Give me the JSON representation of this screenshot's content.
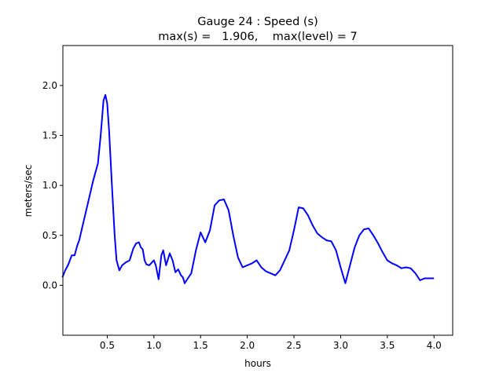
{
  "chart_data": {
    "type": "line",
    "title_line1": "Gauge 24 : Speed (s)",
    "title_line2": "max(s) =   1.906,    max(level) = 7",
    "xlabel": "hours",
    "ylabel": "meters/sec",
    "xlim": [
      0.025,
      4.2
    ],
    "ylim": [
      -0.5,
      2.4
    ],
    "xticks": [
      0.5,
      1.0,
      1.5,
      2.0,
      2.5,
      3.0,
      3.5,
      4.0
    ],
    "xtick_labels": [
      "0.5",
      "1.0",
      "1.5",
      "2.0",
      "2.5",
      "3.0",
      "3.5",
      "4.0"
    ],
    "yticks": [
      0.0,
      0.5,
      1.0,
      1.5,
      2.0
    ],
    "ytick_labels": [
      "0.0",
      "0.5",
      "1.0",
      "1.5",
      "2.0"
    ],
    "grid": false,
    "series": [
      {
        "name": "speed",
        "color": "#0000ff",
        "x": [
          0.02,
          0.05,
          0.08,
          0.1,
          0.12,
          0.15,
          0.18,
          0.2,
          0.25,
          0.3,
          0.35,
          0.4,
          0.43,
          0.46,
          0.48,
          0.5,
          0.52,
          0.55,
          0.58,
          0.6,
          0.63,
          0.66,
          0.7,
          0.74,
          0.78,
          0.81,
          0.84,
          0.86,
          0.88,
          0.9,
          0.92,
          0.95,
          1.0,
          1.02,
          1.05,
          1.08,
          1.1,
          1.13,
          1.17,
          1.2,
          1.23,
          1.26,
          1.29,
          1.31,
          1.33,
          1.35,
          1.4,
          1.45,
          1.5,
          1.55,
          1.6,
          1.65,
          1.7,
          1.75,
          1.8,
          1.85,
          1.9,
          1.95,
          2.0,
          2.05,
          2.1,
          2.15,
          2.2,
          2.25,
          2.3,
          2.35,
          2.4,
          2.45,
          2.5,
          2.55,
          2.6,
          2.65,
          2.7,
          2.75,
          2.8,
          2.85,
          2.9,
          2.95,
          3.0,
          3.05,
          3.1,
          3.15,
          3.2,
          3.25,
          3.3,
          3.35,
          3.4,
          3.45,
          3.5,
          3.55,
          3.6,
          3.65,
          3.7,
          3.75,
          3.8,
          3.85,
          3.9,
          3.95,
          4.0
        ],
        "y": [
          0.08,
          0.15,
          0.2,
          0.25,
          0.3,
          0.3,
          0.4,
          0.45,
          0.65,
          0.85,
          1.05,
          1.22,
          1.5,
          1.85,
          1.906,
          1.82,
          1.55,
          1.0,
          0.5,
          0.25,
          0.15,
          0.2,
          0.23,
          0.25,
          0.37,
          0.42,
          0.43,
          0.38,
          0.36,
          0.25,
          0.21,
          0.2,
          0.25,
          0.2,
          0.06,
          0.3,
          0.35,
          0.2,
          0.32,
          0.25,
          0.13,
          0.16,
          0.1,
          0.08,
          0.02,
          0.05,
          0.12,
          0.35,
          0.53,
          0.43,
          0.55,
          0.8,
          0.85,
          0.86,
          0.75,
          0.5,
          0.28,
          0.18,
          0.2,
          0.22,
          0.25,
          0.18,
          0.14,
          0.12,
          0.1,
          0.15,
          0.25,
          0.35,
          0.55,
          0.78,
          0.77,
          0.7,
          0.6,
          0.52,
          0.48,
          0.45,
          0.44,
          0.35,
          0.18,
          0.02,
          0.2,
          0.38,
          0.5,
          0.56,
          0.57,
          0.5,
          0.42,
          0.33,
          0.25,
          0.22,
          0.2,
          0.17,
          0.18,
          0.17,
          0.12,
          0.05,
          0.07,
          0.07,
          0.07
        ]
      }
    ]
  }
}
